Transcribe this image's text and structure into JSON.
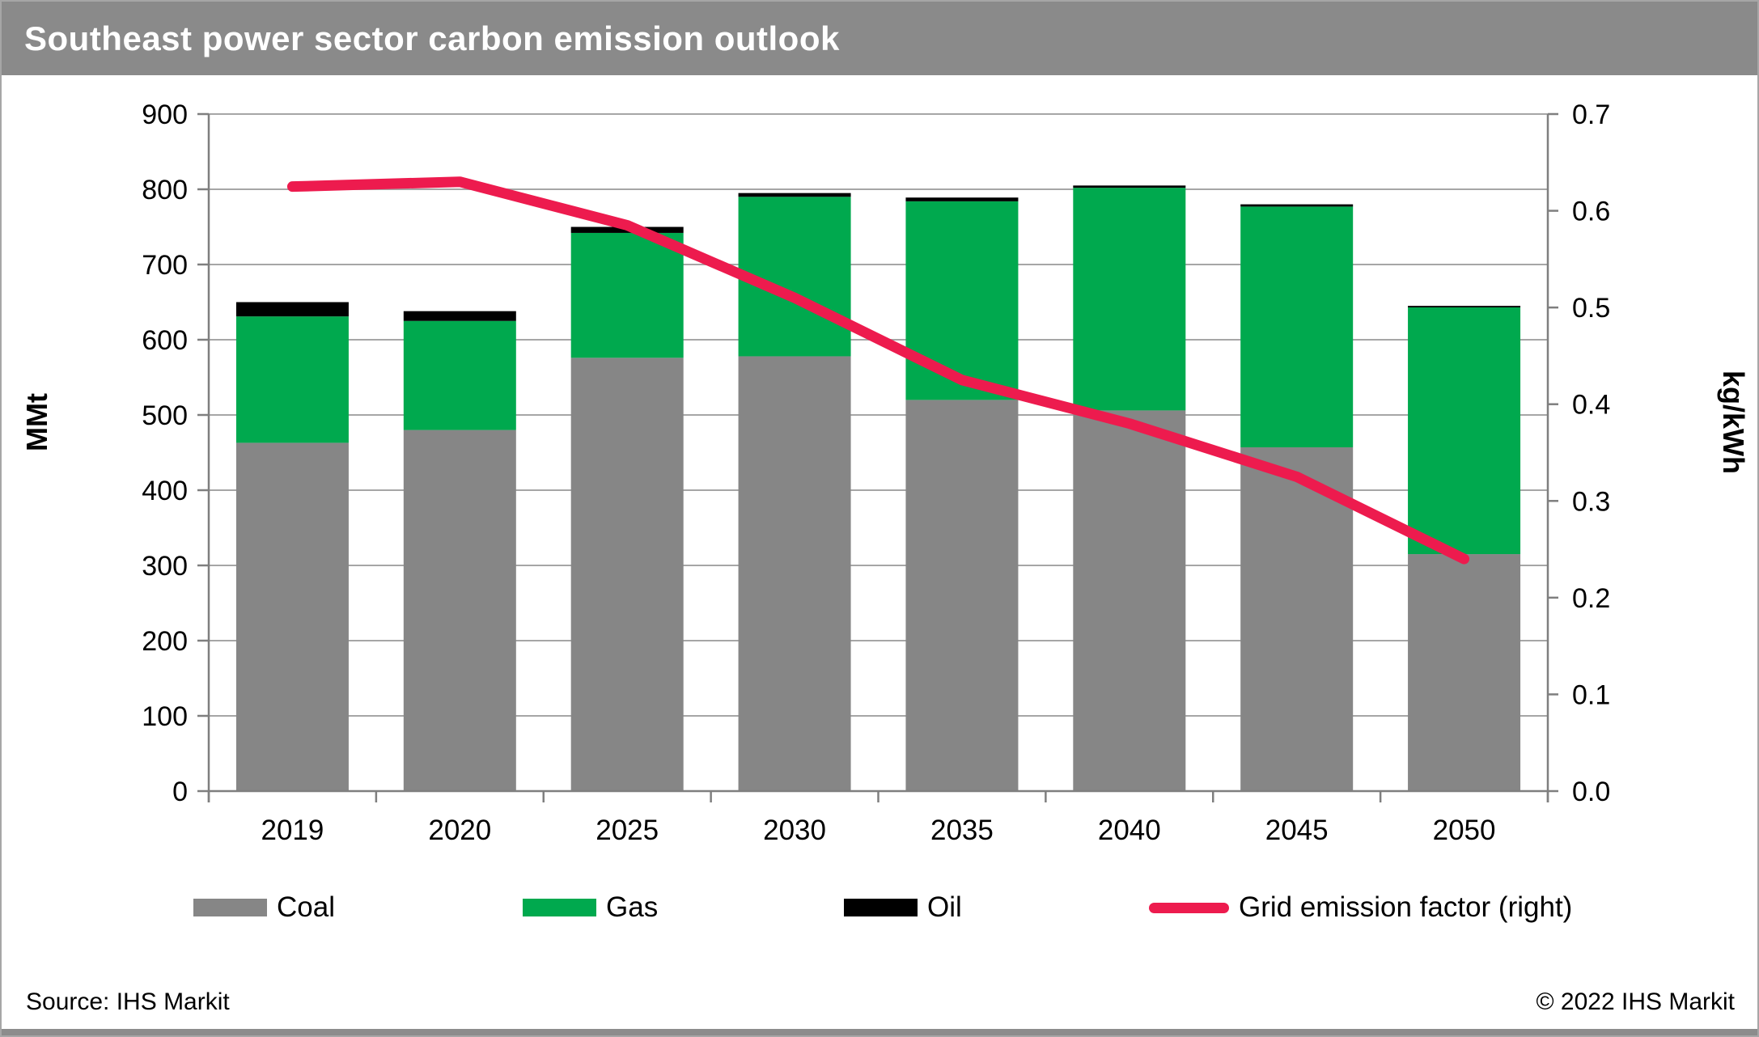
{
  "title": "Southeast power sector carbon emission outlook",
  "footer": {
    "source": "Source: IHS Markit",
    "copyright": "© 2022 IHS Markit"
  },
  "legend": {
    "items": [
      {
        "label": "Coal",
        "color": "#868686",
        "type": "box"
      },
      {
        "label": "Gas",
        "color": "#00a94e",
        "type": "box"
      },
      {
        "label": "Oil",
        "color": "#000000",
        "type": "box"
      },
      {
        "label": "Grid emission factor (right)",
        "color": "#ed1b4e",
        "type": "line"
      }
    ]
  },
  "chart_data": {
    "type": "bar",
    "stacked": true,
    "title": "Southeast power sector carbon emission outlook",
    "categories": [
      "2019",
      "2020",
      "2025",
      "2030",
      "2035",
      "2040",
      "2045",
      "2050"
    ],
    "series": [
      {
        "name": "Coal",
        "type": "bar",
        "axis": "left",
        "color": "#868686",
        "values": [
          463,
          480,
          576,
          578,
          520,
          506,
          457,
          315
        ]
      },
      {
        "name": "Gas",
        "type": "bar",
        "axis": "left",
        "color": "#00a94e",
        "values": [
          168,
          145,
          166,
          212,
          264,
          296,
          320,
          328
        ]
      },
      {
        "name": "Oil",
        "type": "bar",
        "axis": "left",
        "color": "#000000",
        "values": [
          19,
          13,
          8,
          5,
          5,
          3,
          3,
          2
        ]
      },
      {
        "name": "Grid emission factor (right)",
        "type": "line",
        "axis": "right",
        "color": "#ed1b4e",
        "values": [
          0.625,
          0.63,
          0.585,
          0.51,
          0.425,
          0.38,
          0.325,
          0.24
        ]
      }
    ],
    "left_axis": {
      "label": "MMt",
      "min": 0,
      "max": 900,
      "step": 100,
      "ticks": [
        "900",
        "800",
        "700",
        "600",
        "500",
        "400",
        "300",
        "200",
        "100",
        "0"
      ]
    },
    "right_axis": {
      "label": "kg/kWh",
      "min": 0.0,
      "max": 0.7,
      "step": 0.1,
      "ticks": [
        "0.7",
        "0.6",
        "0.5",
        "0.4",
        "0.3",
        "0.2",
        "0.1",
        "0.0"
      ]
    },
    "grid": true,
    "legend_position": "bottom"
  },
  "style": {
    "grid_color": "#a6a6a6",
    "axis_color": "#7f7f7f",
    "text_color": "#000000",
    "title_band_color": "#8a8a8a"
  }
}
